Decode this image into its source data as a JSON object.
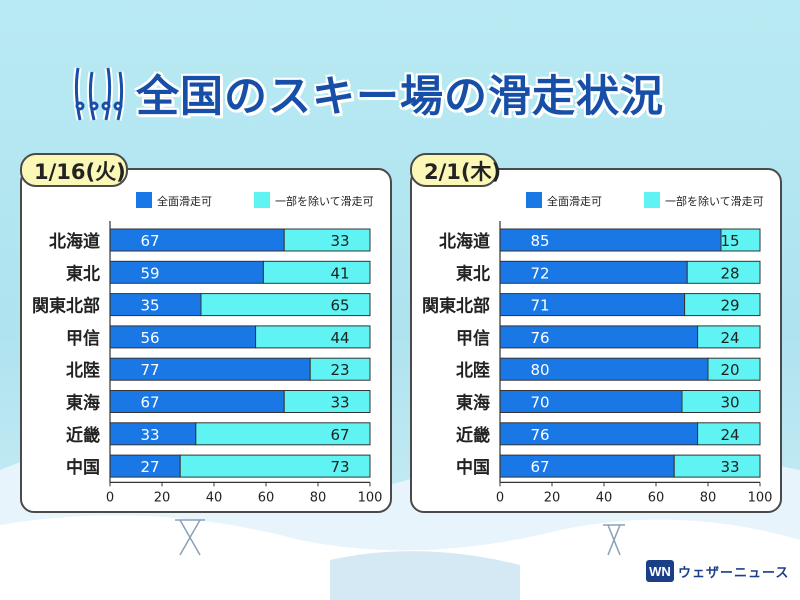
{
  "title": "全国のスキー場の滑走状況",
  "brand": "ウェザーニュース",
  "colors": {
    "full": "#1a78e6",
    "partial": "#5ff3f3",
    "title": "#174fa8",
    "tag_bg": "#fbf7b6"
  },
  "chart_data": [
    {
      "type": "bar",
      "orientation": "horizontal-stacked",
      "title": "1/16(火)",
      "legend": [
        "全面滑走可",
        "一部を除いて滑走可"
      ],
      "categories": [
        "北海道",
        "東北",
        "関東北部",
        "甲信",
        "北陸",
        "東海",
        "近畿",
        "中国"
      ],
      "series": [
        {
          "name": "全面滑走可",
          "values": [
            67,
            59,
            35,
            56,
            77,
            67,
            33,
            27
          ]
        },
        {
          "name": "一部を除いて滑走可",
          "values": [
            33,
            41,
            65,
            44,
            23,
            33,
            67,
            73
          ]
        }
      ],
      "xlim": [
        0,
        100
      ],
      "xticks": [
        "0",
        "20",
        "40",
        "60",
        "80",
        "100"
      ]
    },
    {
      "type": "bar",
      "orientation": "horizontal-stacked",
      "title": "2/1(木)",
      "legend": [
        "全面滑走可",
        "一部を除いて滑走可"
      ],
      "categories": [
        "北海道",
        "東北",
        "関東北部",
        "甲信",
        "北陸",
        "東海",
        "近畿",
        "中国"
      ],
      "series": [
        {
          "name": "全面滑走可",
          "values": [
            85,
            72,
            71,
            76,
            80,
            70,
            76,
            67
          ]
        },
        {
          "name": "一部を除いて滑走可",
          "values": [
            15,
            28,
            29,
            24,
            20,
            30,
            24,
            33
          ]
        }
      ],
      "xlim": [
        0,
        100
      ],
      "xticks": [
        "0",
        "20",
        "40",
        "60",
        "80",
        "100"
      ]
    }
  ]
}
